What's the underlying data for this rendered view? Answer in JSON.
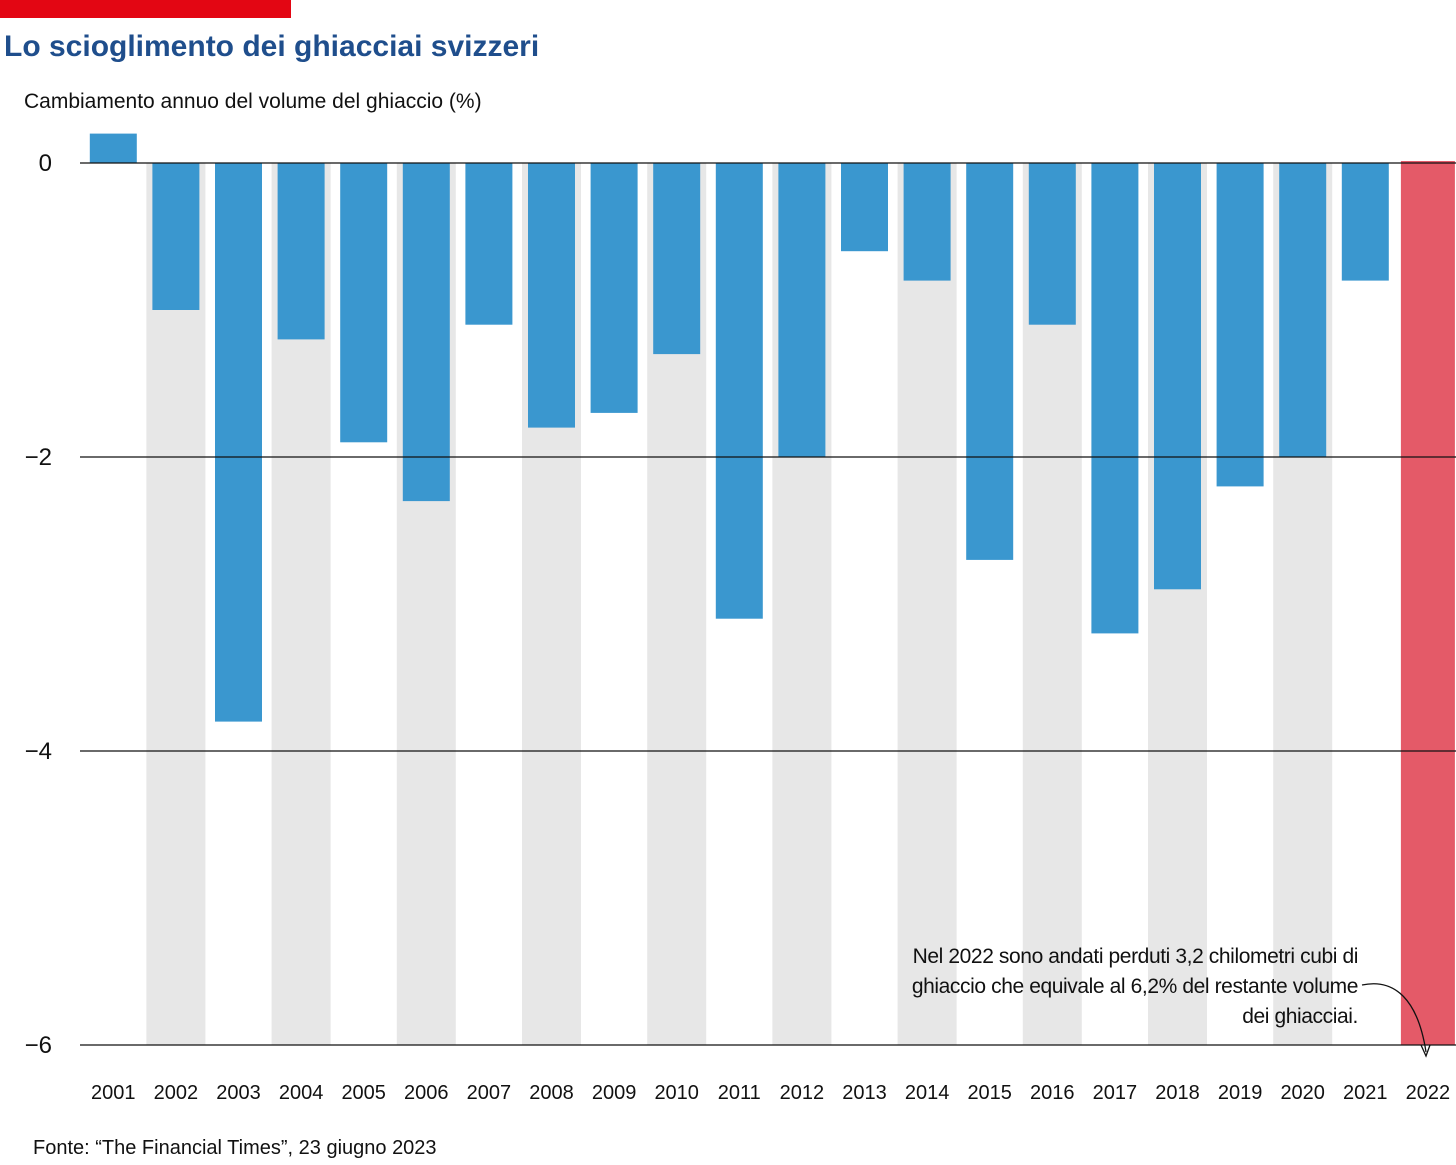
{
  "title": "Lo scioglimento dei ghiacciai svizzeri",
  "subtitle": "Cambiamento annuo del volume del ghiaccio (%)",
  "source": "Fonte: “The Financial Times”, 23 giugno 2023",
  "annotation": "Nel 2022 sono andati perduti 3,2 chilometri cubi di ghiaccio che equivale al 6,2% del restante volume dei ghiacciai.",
  "colors": {
    "accent_bar": "#e30613",
    "title": "#1f4e8c",
    "bar": "#3a97cf",
    "highlight": "#e45a68",
    "band": "#e7e7e7"
  },
  "chart_data": {
    "type": "bar",
    "title": "Lo scioglimento dei ghiacciai svizzeri",
    "ylabel": "Cambiamento annuo del volume del ghiaccio (%)",
    "xlabel": "",
    "ylim": [
      -6,
      0.2
    ],
    "yticks": [
      0,
      -2,
      -4,
      -6
    ],
    "ytick_labels": [
      "0",
      "−2",
      "−4",
      "−6"
    ],
    "grid": true,
    "categories": [
      "2001",
      "2002",
      "2003",
      "2004",
      "2005",
      "2006",
      "2007",
      "2008",
      "2009",
      "2010",
      "2011",
      "2012",
      "2013",
      "2014",
      "2015",
      "2016",
      "2017",
      "2018",
      "2019",
      "2020",
      "2021",
      "2022"
    ],
    "values": [
      0.2,
      -1.0,
      -3.8,
      -1.2,
      -1.9,
      -2.3,
      -1.1,
      -1.8,
      -1.7,
      -1.3,
      -3.1,
      -2.0,
      -0.6,
      -0.8,
      -2.7,
      -1.1,
      -3.2,
      -2.9,
      -2.2,
      -2.0,
      -0.8,
      -6.2
    ],
    "highlight_category": "2022"
  }
}
